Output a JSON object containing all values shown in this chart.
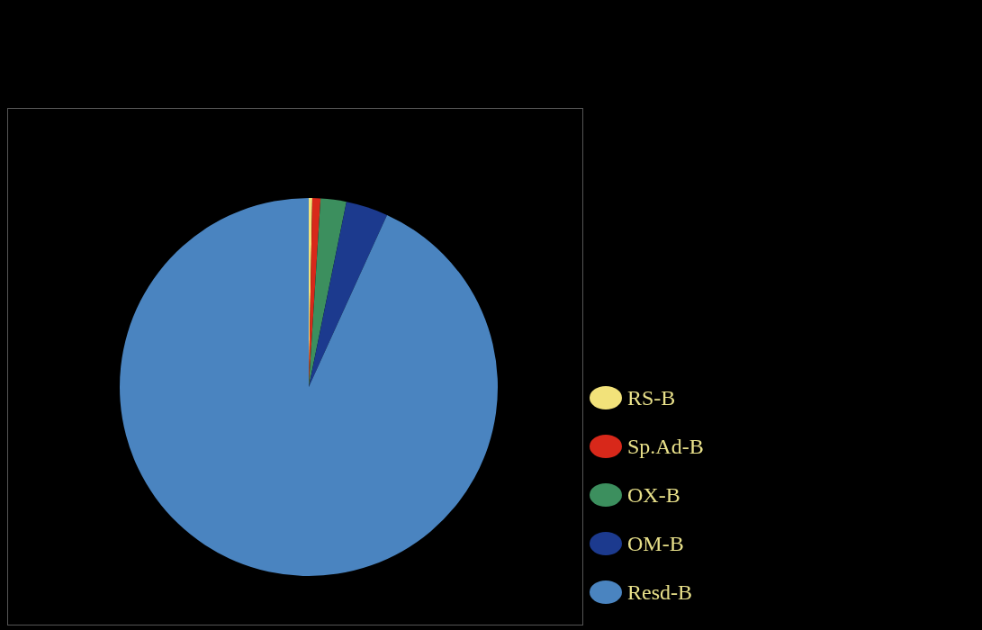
{
  "chart_data": {
    "type": "pie",
    "categories": [
      "RS-B",
      "Sp.Ad-B",
      "OX-B",
      "OM-B",
      "Resd-B"
    ],
    "values": [
      0.3,
      0.7,
      2.2,
      3.6,
      93.2
    ],
    "colors": [
      "#f2e27a",
      "#d8281a",
      "#3c8f5e",
      "#1c3a8e",
      "#4a84c0"
    ],
    "legend": "right"
  }
}
